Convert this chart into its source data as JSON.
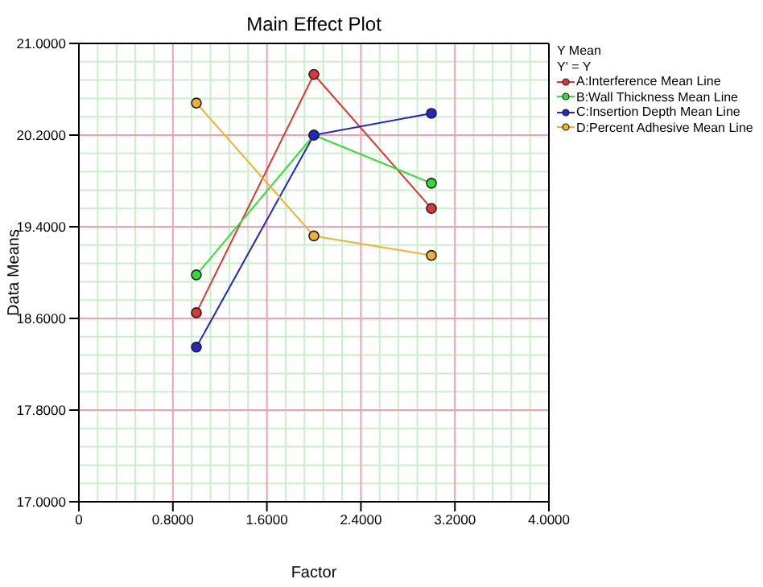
{
  "chart_data": {
    "type": "line",
    "title": "Main Effect Plot",
    "xlabel": "Factor",
    "ylabel": "Data Means",
    "legend_title": "Y Mean",
    "annotations": [
      "Y' = Y"
    ],
    "x": [
      1,
      2,
      3
    ],
    "series": [
      {
        "name": "A:Interference Mean Line",
        "color": "#e03535",
        "values": [
          18.65,
          20.73,
          19.56
        ]
      },
      {
        "name": "B:Wall Thickness Mean Line",
        "color": "#33dd33",
        "values": [
          18.98,
          20.2,
          19.78
        ]
      },
      {
        "name": "C:Insertion Depth Mean Line",
        "color": "#2525cc",
        "values": [
          18.35,
          20.2,
          20.39
        ]
      },
      {
        "name": "D:Percent Adhesive Mean Line",
        "color": "#f0b030",
        "values": [
          20.48,
          19.32,
          19.15
        ]
      }
    ],
    "xlim": [
      0,
      4
    ],
    "xticks": [
      {
        "value": 0,
        "label": "0"
      },
      {
        "value": 0.8,
        "label": "0.8000"
      },
      {
        "value": 1.6,
        "label": "1.6000"
      },
      {
        "value": 2.4,
        "label": "2.4000"
      },
      {
        "value": 3.2,
        "label": "3.2000"
      },
      {
        "value": 4,
        "label": "4.0000"
      }
    ],
    "ylim": [
      17,
      21
    ],
    "yticks": [
      {
        "value": 17,
        "label": "17.0000"
      },
      {
        "value": 17.8,
        "label": "17.8000"
      },
      {
        "value": 18.6,
        "label": "18.6000"
      },
      {
        "value": 19.4,
        "label": "19.4000"
      },
      {
        "value": 20.2,
        "label": "20.2000"
      },
      {
        "value": 21,
        "label": "21.0000"
      }
    ],
    "grid": true,
    "legend": "top right",
    "marker": "circle",
    "line_style": "solid"
  }
}
